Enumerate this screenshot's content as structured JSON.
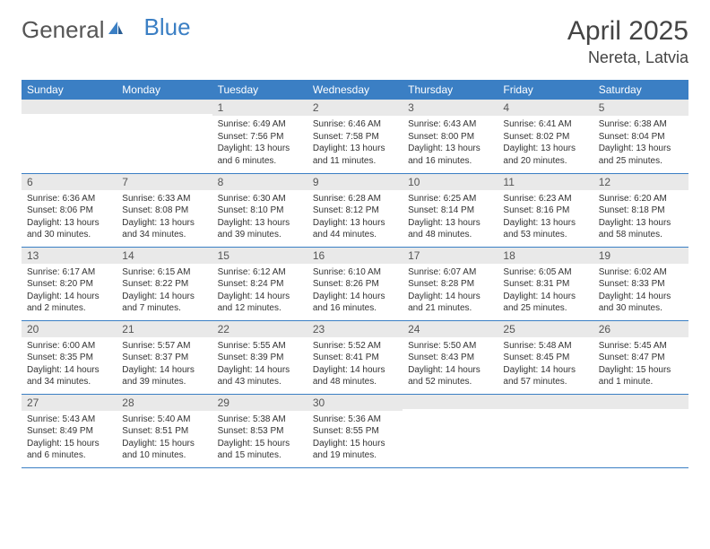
{
  "brand": {
    "part1": "General",
    "part2": "Blue"
  },
  "title": "April 2025",
  "location": "Nereta, Latvia",
  "colors": {
    "header_bg": "#3b7fc4",
    "header_text": "#ffffff",
    "daynum_bg": "#e9e9e9",
    "text": "#333333",
    "rule": "#3b7fc4"
  },
  "day_headers": [
    "Sunday",
    "Monday",
    "Tuesday",
    "Wednesday",
    "Thursday",
    "Friday",
    "Saturday"
  ],
  "weeks": [
    [
      {
        "n": "",
        "sunrise": "",
        "sunset": "",
        "daylight": ""
      },
      {
        "n": "",
        "sunrise": "",
        "sunset": "",
        "daylight": ""
      },
      {
        "n": "1",
        "sunrise": "Sunrise: 6:49 AM",
        "sunset": "Sunset: 7:56 PM",
        "daylight": "Daylight: 13 hours and 6 minutes."
      },
      {
        "n": "2",
        "sunrise": "Sunrise: 6:46 AM",
        "sunset": "Sunset: 7:58 PM",
        "daylight": "Daylight: 13 hours and 11 minutes."
      },
      {
        "n": "3",
        "sunrise": "Sunrise: 6:43 AM",
        "sunset": "Sunset: 8:00 PM",
        "daylight": "Daylight: 13 hours and 16 minutes."
      },
      {
        "n": "4",
        "sunrise": "Sunrise: 6:41 AM",
        "sunset": "Sunset: 8:02 PM",
        "daylight": "Daylight: 13 hours and 20 minutes."
      },
      {
        "n": "5",
        "sunrise": "Sunrise: 6:38 AM",
        "sunset": "Sunset: 8:04 PM",
        "daylight": "Daylight: 13 hours and 25 minutes."
      }
    ],
    [
      {
        "n": "6",
        "sunrise": "Sunrise: 6:36 AM",
        "sunset": "Sunset: 8:06 PM",
        "daylight": "Daylight: 13 hours and 30 minutes."
      },
      {
        "n": "7",
        "sunrise": "Sunrise: 6:33 AM",
        "sunset": "Sunset: 8:08 PM",
        "daylight": "Daylight: 13 hours and 34 minutes."
      },
      {
        "n": "8",
        "sunrise": "Sunrise: 6:30 AM",
        "sunset": "Sunset: 8:10 PM",
        "daylight": "Daylight: 13 hours and 39 minutes."
      },
      {
        "n": "9",
        "sunrise": "Sunrise: 6:28 AM",
        "sunset": "Sunset: 8:12 PM",
        "daylight": "Daylight: 13 hours and 44 minutes."
      },
      {
        "n": "10",
        "sunrise": "Sunrise: 6:25 AM",
        "sunset": "Sunset: 8:14 PM",
        "daylight": "Daylight: 13 hours and 48 minutes."
      },
      {
        "n": "11",
        "sunrise": "Sunrise: 6:23 AM",
        "sunset": "Sunset: 8:16 PM",
        "daylight": "Daylight: 13 hours and 53 minutes."
      },
      {
        "n": "12",
        "sunrise": "Sunrise: 6:20 AM",
        "sunset": "Sunset: 8:18 PM",
        "daylight": "Daylight: 13 hours and 58 minutes."
      }
    ],
    [
      {
        "n": "13",
        "sunrise": "Sunrise: 6:17 AM",
        "sunset": "Sunset: 8:20 PM",
        "daylight": "Daylight: 14 hours and 2 minutes."
      },
      {
        "n": "14",
        "sunrise": "Sunrise: 6:15 AM",
        "sunset": "Sunset: 8:22 PM",
        "daylight": "Daylight: 14 hours and 7 minutes."
      },
      {
        "n": "15",
        "sunrise": "Sunrise: 6:12 AM",
        "sunset": "Sunset: 8:24 PM",
        "daylight": "Daylight: 14 hours and 12 minutes."
      },
      {
        "n": "16",
        "sunrise": "Sunrise: 6:10 AM",
        "sunset": "Sunset: 8:26 PM",
        "daylight": "Daylight: 14 hours and 16 minutes."
      },
      {
        "n": "17",
        "sunrise": "Sunrise: 6:07 AM",
        "sunset": "Sunset: 8:28 PM",
        "daylight": "Daylight: 14 hours and 21 minutes."
      },
      {
        "n": "18",
        "sunrise": "Sunrise: 6:05 AM",
        "sunset": "Sunset: 8:31 PM",
        "daylight": "Daylight: 14 hours and 25 minutes."
      },
      {
        "n": "19",
        "sunrise": "Sunrise: 6:02 AM",
        "sunset": "Sunset: 8:33 PM",
        "daylight": "Daylight: 14 hours and 30 minutes."
      }
    ],
    [
      {
        "n": "20",
        "sunrise": "Sunrise: 6:00 AM",
        "sunset": "Sunset: 8:35 PM",
        "daylight": "Daylight: 14 hours and 34 minutes."
      },
      {
        "n": "21",
        "sunrise": "Sunrise: 5:57 AM",
        "sunset": "Sunset: 8:37 PM",
        "daylight": "Daylight: 14 hours and 39 minutes."
      },
      {
        "n": "22",
        "sunrise": "Sunrise: 5:55 AM",
        "sunset": "Sunset: 8:39 PM",
        "daylight": "Daylight: 14 hours and 43 minutes."
      },
      {
        "n": "23",
        "sunrise": "Sunrise: 5:52 AM",
        "sunset": "Sunset: 8:41 PM",
        "daylight": "Daylight: 14 hours and 48 minutes."
      },
      {
        "n": "24",
        "sunrise": "Sunrise: 5:50 AM",
        "sunset": "Sunset: 8:43 PM",
        "daylight": "Daylight: 14 hours and 52 minutes."
      },
      {
        "n": "25",
        "sunrise": "Sunrise: 5:48 AM",
        "sunset": "Sunset: 8:45 PM",
        "daylight": "Daylight: 14 hours and 57 minutes."
      },
      {
        "n": "26",
        "sunrise": "Sunrise: 5:45 AM",
        "sunset": "Sunset: 8:47 PM",
        "daylight": "Daylight: 15 hours and 1 minute."
      }
    ],
    [
      {
        "n": "27",
        "sunrise": "Sunrise: 5:43 AM",
        "sunset": "Sunset: 8:49 PM",
        "daylight": "Daylight: 15 hours and 6 minutes."
      },
      {
        "n": "28",
        "sunrise": "Sunrise: 5:40 AM",
        "sunset": "Sunset: 8:51 PM",
        "daylight": "Daylight: 15 hours and 10 minutes."
      },
      {
        "n": "29",
        "sunrise": "Sunrise: 5:38 AM",
        "sunset": "Sunset: 8:53 PM",
        "daylight": "Daylight: 15 hours and 15 minutes."
      },
      {
        "n": "30",
        "sunrise": "Sunrise: 5:36 AM",
        "sunset": "Sunset: 8:55 PM",
        "daylight": "Daylight: 15 hours and 19 minutes."
      },
      {
        "n": "",
        "sunrise": "",
        "sunset": "",
        "daylight": ""
      },
      {
        "n": "",
        "sunrise": "",
        "sunset": "",
        "daylight": ""
      },
      {
        "n": "",
        "sunrise": "",
        "sunset": "",
        "daylight": ""
      }
    ]
  ]
}
